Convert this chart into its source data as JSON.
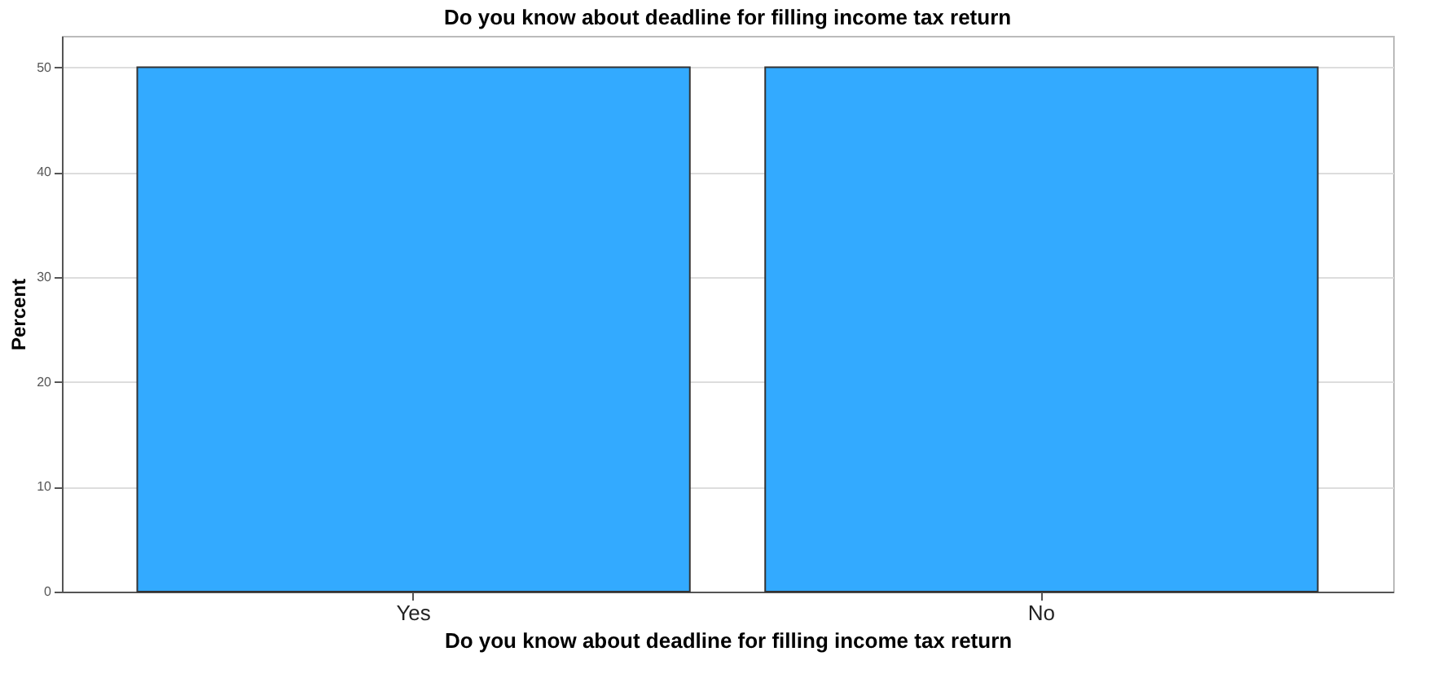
{
  "chart_data": {
    "type": "bar",
    "title": "Do you know about deadline for filling income tax return",
    "xlabel": "Do you know about deadline for filling income tax return",
    "ylabel": "Percent",
    "categories": [
      "Yes",
      "No"
    ],
    "values": [
      50,
      50
    ],
    "color": "#33aaff",
    "ylim": [
      0,
      53
    ],
    "yticks": [
      0,
      10,
      20,
      30,
      40,
      50
    ],
    "grid": "y"
  }
}
